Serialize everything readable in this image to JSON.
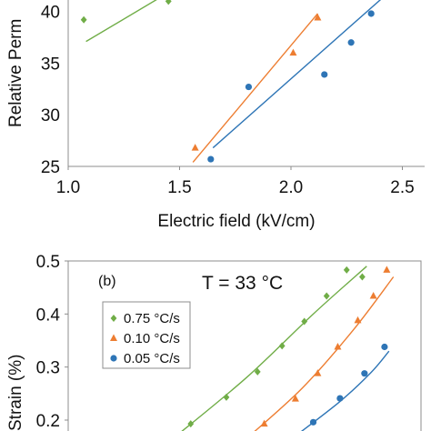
{
  "chart_data": [
    {
      "panel": "a",
      "type": "scatter",
      "xlabel": "Electric field (kV/cm)",
      "ylabel": "Relative Perm",
      "xlim": [
        1.0,
        2.6
      ],
      "ylim": [
        25,
        42
      ],
      "x_ticks": [
        "1.0",
        "1.5",
        "2.0",
        "2.5"
      ],
      "y_ticks": [
        "25",
        "30",
        "35",
        "40"
      ],
      "grid": false,
      "series": [
        {
          "color": "#70ad47",
          "marker": "diamond",
          "x": [
            1.07,
            1.45
          ],
          "y": [
            39.2,
            41.0
          ],
          "fit": [
            [
              1.08,
              37.1
            ],
            [
              1.4,
              41.2
            ]
          ]
        },
        {
          "color": "#ed7d31",
          "marker": "triangle",
          "x": [
            1.57,
            2.01,
            2.12
          ],
          "y": [
            26.8,
            36.0,
            39.4
          ],
          "fit": [
            [
              1.56,
              25.4
            ],
            [
              2.12,
              39.8
            ]
          ]
        },
        {
          "color": "#2e75b6",
          "marker": "circle",
          "x": [
            1.64,
            1.81,
            2.15,
            2.27,
            2.36
          ],
          "y": [
            25.7,
            32.7,
            33.9,
            37.0,
            39.8
          ],
          "fit": [
            [
              1.65,
              26.8
            ],
            [
              2.42,
              41.5
            ]
          ]
        }
      ]
    },
    {
      "panel": "b",
      "type": "scatter",
      "panel_label": "(b)",
      "annotation": "T = 33 °C",
      "ylabel": "Strain (%)",
      "ylim": [
        0.17,
        0.5
      ],
      "y_ticks": [
        "0.5",
        "0.4",
        "0.3",
        "0.2"
      ],
      "grid": false,
      "legend_position": "upper-left",
      "series": [
        {
          "name": "0.75 °C/s",
          "color": "#70ad47",
          "marker": "diamond",
          "x": [
            1.55,
            1.71,
            1.85,
            1.96,
            2.06,
            2.16,
            2.25,
            2.32
          ],
          "y": [
            0.193,
            0.243,
            0.291,
            0.34,
            0.386,
            0.434,
            0.483,
            0.47
          ],
          "fit": [
            [
              1.47,
              0.165
            ],
            [
              1.8,
              0.28
            ],
            [
              2.1,
              0.4
            ],
            [
              2.34,
              0.49
            ]
          ]
        },
        {
          "name": "0.10 °C/s",
          "color": "#ed7d31",
          "marker": "triangle",
          "x": [
            1.88,
            2.02,
            2.12,
            2.21,
            2.3,
            2.37,
            2.43
          ],
          "y": [
            0.193,
            0.24,
            0.288,
            0.338,
            0.388,
            0.434,
            0.483
          ],
          "fit": [
            [
              1.8,
              0.165
            ],
            [
              2.05,
              0.26
            ],
            [
              2.28,
              0.37
            ],
            [
              2.46,
              0.47
            ]
          ]
        },
        {
          "name": "0.05 °C/s",
          "color": "#2e75b6",
          "marker": "circle",
          "x": [
            2.1,
            2.22,
            2.33,
            2.42
          ],
          "y": [
            0.196,
            0.241,
            0.288,
            0.338
          ],
          "fit": [
            [
              2.02,
              0.17
            ],
            [
              2.22,
              0.235
            ],
            [
              2.36,
              0.29
            ],
            [
              2.44,
              0.33
            ]
          ]
        }
      ]
    }
  ]
}
